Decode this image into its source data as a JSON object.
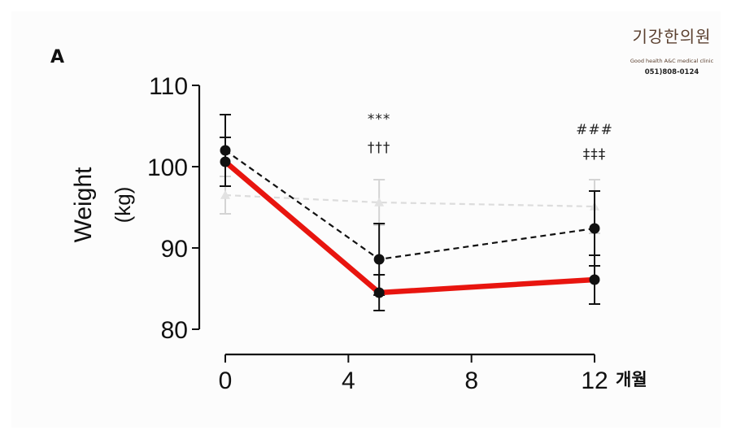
{
  "panel_label": "A",
  "logo": {
    "brand": "기강한의원",
    "tagline": "Good health A&C medical clinic",
    "phone": "051)808-0124"
  },
  "colors": {
    "red": "#e8150f",
    "black": "#111111",
    "grey": "#dcdcdc",
    "grey_marker": "#e2e2e2"
  },
  "chart_data": {
    "type": "line",
    "ylabel": "Weight",
    "yunit": "(kg)",
    "xunit": "개월",
    "xlim": [
      0,
      12
    ],
    "ylim": [
      80,
      110
    ],
    "xticks": [
      0,
      4,
      8,
      12
    ],
    "yticks": [
      80,
      90,
      100,
      110
    ],
    "grid": false,
    "series": [
      {
        "style": "dashed",
        "color": "#dcdcdc",
        "marker": "triangle",
        "x": [
          0,
          5,
          12
        ],
        "y": [
          96.5,
          95.6,
          95.1
        ],
        "err": [
          2.3,
          2.8,
          3.3
        ]
      },
      {
        "style": "dashed",
        "color": "#111111",
        "marker": "circle",
        "x": [
          0,
          5,
          12
        ],
        "y": [
          102.0,
          88.6,
          92.4
        ],
        "err": [
          4.4,
          4.4,
          4.6
        ]
      },
      {
        "style": "solid",
        "color": "#e8150f",
        "marker": "circle",
        "x": [
          0,
          5,
          12
        ],
        "y": [
          100.6,
          84.5,
          86.1
        ],
        "err": [
          3.0,
          2.2,
          3.0
        ]
      }
    ],
    "annotations": [
      {
        "text": "***",
        "x": 5,
        "y": 105.3
      },
      {
        "text": "†††",
        "x": 5,
        "y": 101.8
      },
      {
        "text": "###",
        "x": 12,
        "y": 104.0
      },
      {
        "text": "‡‡‡",
        "x": 12,
        "y": 101.0
      }
    ]
  }
}
